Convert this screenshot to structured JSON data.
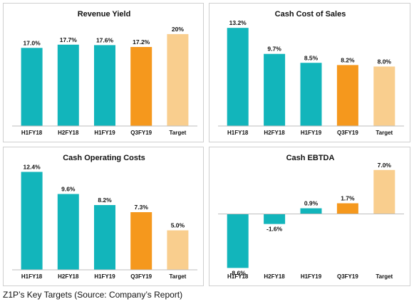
{
  "colors": {
    "teal": "#12B5BB",
    "orange": "#F5981D",
    "peach": "#F9CE8E"
  },
  "caption": "Z1P’s Key Targets (Source: Company’s Report)",
  "chart_data": [
    {
      "type": "bar",
      "title": "Revenue Yield",
      "categories": [
        "H1FY18",
        "H2FY18",
        "H1FY19",
        "Q3FY19",
        "Target"
      ],
      "values": [
        17.0,
        17.7,
        17.6,
        17.2,
        20.0
      ],
      "value_labels": [
        "17.0%",
        "17.7%",
        "17.6%",
        "17.2%",
        "20%"
      ],
      "bar_colors": [
        "teal",
        "teal",
        "teal",
        "orange",
        "peach"
      ],
      "ylim": [
        0,
        22
      ]
    },
    {
      "type": "bar",
      "title": "Cash Cost of Sales",
      "categories": [
        "H1FY18",
        "H2FY18",
        "H1FY19",
        "Q3FY19",
        "Target"
      ],
      "values": [
        13.2,
        9.7,
        8.5,
        8.2,
        8.0
      ],
      "value_labels": [
        "13.2%",
        "9.7%",
        "8.5%",
        "8.2%",
        "8.0%"
      ],
      "bar_colors": [
        "teal",
        "teal",
        "teal",
        "orange",
        "peach"
      ],
      "ylim": [
        0,
        13.6
      ]
    },
    {
      "type": "bar",
      "title": "Cash Operating Costs",
      "categories": [
        "H1FY18",
        "H2FY18",
        "H1FY19",
        "Q3FY19",
        "Target"
      ],
      "values": [
        12.4,
        9.6,
        8.2,
        7.3,
        5.0
      ],
      "value_labels": [
        "12.4%",
        "9.6%",
        "8.2%",
        "7.3%",
        "5.0%"
      ],
      "bar_colors": [
        "teal",
        "teal",
        "teal",
        "orange",
        "peach"
      ],
      "ylim": [
        0,
        12.8
      ]
    },
    {
      "type": "bar",
      "title": "Cash EBTDA",
      "categories": [
        "H1FY18",
        "H2FY18",
        "H1FY19",
        "Q3FY19",
        "Target"
      ],
      "values": [
        -8.6,
        -1.6,
        0.9,
        1.7,
        7.0
      ],
      "value_labels": [
        "-8.6%",
        "-1.6%",
        "0.9%",
        "1.7%",
        "7.0%"
      ],
      "bar_colors": [
        "teal",
        "teal",
        "teal",
        "orange",
        "peach"
      ],
      "ylim": [
        -8.9,
        7.2
      ]
    }
  ]
}
